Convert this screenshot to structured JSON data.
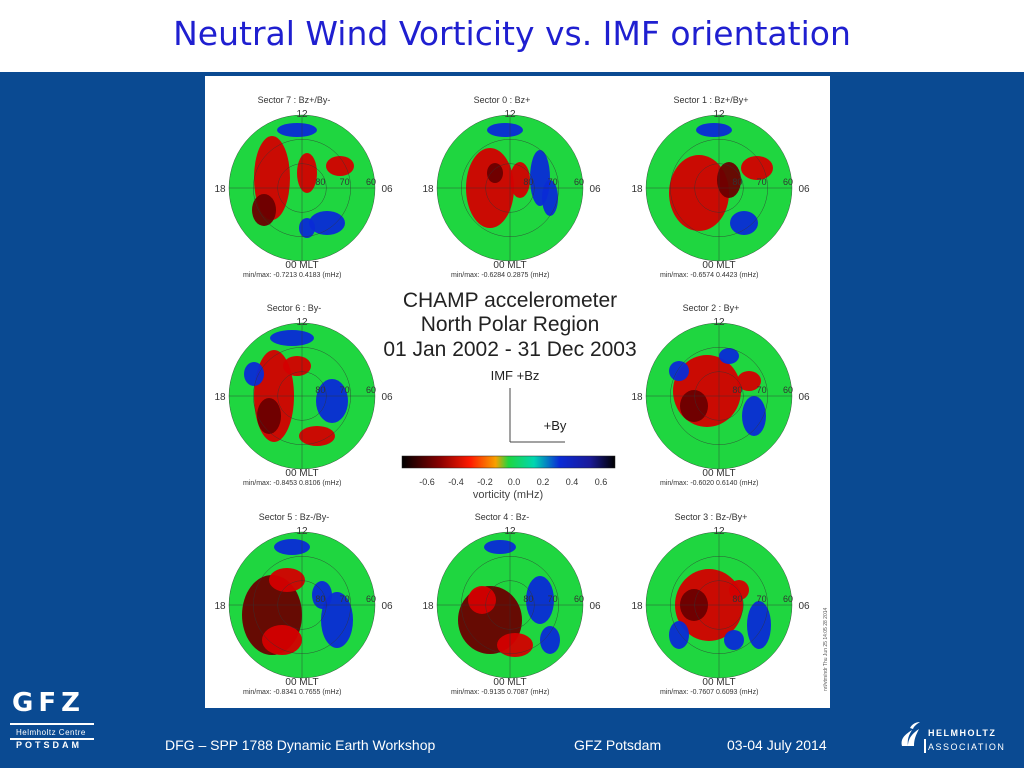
{
  "slide": {
    "title": "Neutral Wind Vorticity vs. IMF orientation"
  },
  "footer": {
    "workshop": "DFG – SPP 1788  Dynamic Earth Workshop",
    "venue": "GFZ Potsdam",
    "dates": "03-04 July  2014"
  },
  "logos": {
    "gfz_abbrev": "GFZ",
    "gfz_line1": "Helmholtz Centre",
    "gfz_line2": "POTSDAM",
    "helmholtz_line1": "HELMHOLTZ",
    "helmholtz_line2": "ASSOCIATION"
  },
  "figure": {
    "heading_line1": "CHAMP accelerometer",
    "heading_line2": "North Polar Region",
    "heading_line3": "01 Jan 2002 - 31 Dec 2003",
    "imf_bz_label": "IMF +Bz",
    "imf_by_label": "+By",
    "colorbar_title": "vorticity (mHz)",
    "colorbar_ticks": [
      "-0.6",
      "-0.4",
      "-0.2",
      "0.0",
      "0.2",
      "0.4",
      "0.6"
    ],
    "side_note": "nrl/vtm/ndr   Thu Jun 25 14:05 28 2014",
    "colors": {
      "negative": "#d40000",
      "neutral": "#1fd640",
      "positive": "#0a2bd6",
      "background": "#0a4a92"
    }
  },
  "chart_data": [
    {
      "type": "heatmap",
      "title": "Sector 7 : Bz+/By-",
      "mlt_labels": [
        "12",
        "18",
        "06",
        "00 MLT"
      ],
      "lat_labels": [
        "80",
        "70",
        "60"
      ],
      "minmax_label": "min/max: -0.7213  0.4183 (mHz)",
      "min": -0.7213,
      "max": 0.4183
    },
    {
      "type": "heatmap",
      "title": "Sector 0 : Bz+",
      "mlt_labels": [
        "12",
        "18",
        "06",
        "00 MLT"
      ],
      "lat_labels": [
        "80",
        "70",
        "60"
      ],
      "minmax_label": "min/max: -0.6284  0.2875 (mHz)",
      "min": -0.6284,
      "max": 0.2875
    },
    {
      "type": "heatmap",
      "title": "Sector 1 : Bz+/By+",
      "mlt_labels": [
        "12",
        "18",
        "06",
        "00 MLT"
      ],
      "lat_labels": [
        "80",
        "70",
        "60"
      ],
      "minmax_label": "min/max: -0.6574  0.4423 (mHz)",
      "min": -0.6574,
      "max": 0.4423
    },
    {
      "type": "heatmap",
      "title": "Sector 6 : By-",
      "mlt_labels": [
        "12",
        "18",
        "06",
        "00 MLT"
      ],
      "lat_labels": [
        "80",
        "70",
        "60"
      ],
      "minmax_label": "min/max: -0.8453  0.8106 (mHz)",
      "min": -0.8453,
      "max": 0.8106
    },
    {
      "type": "heatmap",
      "title": "Sector 2 : By+",
      "mlt_labels": [
        "12",
        "18",
        "06",
        "00 MLT"
      ],
      "lat_labels": [
        "80",
        "70",
        "60"
      ],
      "minmax_label": "min/max: -0.6020  0.6140 (mHz)",
      "min": -0.602,
      "max": 0.614
    },
    {
      "type": "heatmap",
      "title": "Sector 5 : Bz-/By-",
      "mlt_labels": [
        "12",
        "18",
        "06",
        "00 MLT"
      ],
      "lat_labels": [
        "80",
        "70",
        "60"
      ],
      "minmax_label": "min/max: -0.8341  0.7655 (mHz)",
      "min": -0.8341,
      "max": 0.7655
    },
    {
      "type": "heatmap",
      "title": "Sector 4 : Bz-",
      "mlt_labels": [
        "12",
        "18",
        "06",
        "00 MLT"
      ],
      "lat_labels": [
        "80",
        "70",
        "60"
      ],
      "minmax_label": "min/max: -0.9135  0.7087 (mHz)",
      "min": -0.9135,
      "max": 0.7087
    },
    {
      "type": "heatmap",
      "title": "Sector 3 : Bz-/By+",
      "mlt_labels": [
        "12",
        "18",
        "06",
        "00 MLT"
      ],
      "lat_labels": [
        "80",
        "70",
        "60"
      ],
      "minmax_label": "min/max: -0.7607  0.6093 (mHz)",
      "min": -0.7607,
      "max": 0.6093
    }
  ]
}
